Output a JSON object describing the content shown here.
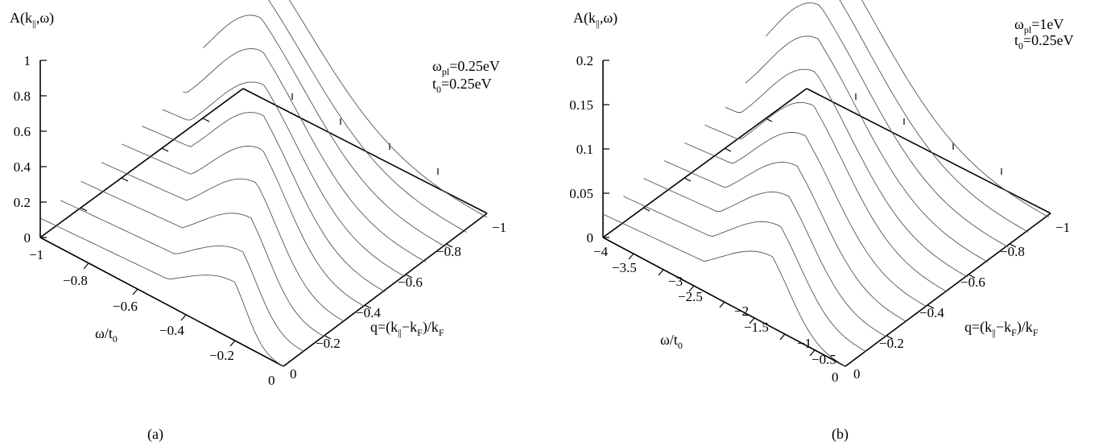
{
  "chart_data": [
    {
      "type": "line",
      "panel_label": "(a)",
      "zlabel": "A(k||,ω)",
      "xlabel": "ω/t0",
      "ylabel": "q=(k||−kF)/kF",
      "annotation": [
        "ωpl=0.25eV",
        "t0=0.25eV"
      ],
      "z_ticks": [
        "0",
        "0.2",
        "0.4",
        "0.6",
        "0.8",
        "1"
      ],
      "x_ticks": [
        "−1",
        "−0.8",
        "−0.6",
        "−0.4",
        "−0.2",
        "0"
      ],
      "y_ticks": [
        "0",
        "−0.2",
        "−0.4",
        "−0.6",
        "−0.8",
        "−1"
      ],
      "x_range": [
        -1,
        0
      ],
      "y_range": [
        0,
        -1
      ],
      "z_range": [
        0,
        1
      ],
      "series": [
        {
          "q": 0.0,
          "peak_omega": -0.2,
          "peak_value": 0.33
        },
        {
          "q": -0.1,
          "peak_omega": -0.25,
          "peak_value": 0.38
        },
        {
          "q": -0.2,
          "peak_omega": -0.3,
          "peak_value": 0.45
        },
        {
          "q": -0.3,
          "peak_omega": -0.36,
          "peak_value": 0.52
        },
        {
          "q": -0.4,
          "peak_omega": -0.42,
          "peak_value": 0.58
        },
        {
          "q": -0.5,
          "peak_omega": -0.5,
          "peak_value": 0.63
        },
        {
          "q": -0.6,
          "peak_omega": -0.58,
          "peak_value": 0.66
        },
        {
          "q": -0.7,
          "peak_omega": -0.67,
          "peak_value": 0.7
        },
        {
          "q": -0.8,
          "peak_omega": -0.76,
          "peak_value": 0.74
        },
        {
          "q": -0.9,
          "peak_omega": -0.86,
          "peak_value": 0.78
        },
        {
          "q": -1.0,
          "peak_omega": -0.95,
          "peak_value": 0.82
        }
      ]
    },
    {
      "type": "line",
      "panel_label": "(b)",
      "zlabel": "A(k||,ω)",
      "xlabel": "ω/t0",
      "ylabel": "q=(k||−kF)/kF",
      "annotation": [
        "ωpl=1eV",
        "t0=0.25eV"
      ],
      "z_ticks": [
        "0",
        "0.05",
        "0.1",
        "0.15",
        "0.2"
      ],
      "x_ticks": [
        "−4",
        "−3.5",
        "−3",
        "−2.5",
        "−2",
        "−1.5",
        "−1",
        "−0.5",
        "0"
      ],
      "y_ticks": [
        "0",
        "−0.2",
        "−0.4",
        "−0.6",
        "−0.8",
        "−1"
      ],
      "x_range": [
        -4,
        0
      ],
      "y_range": [
        0,
        -1
      ],
      "z_range": [
        0,
        0.2
      ],
      "series": [
        {
          "q": 0.0,
          "peak_omega": -1.2,
          "peak_value": 0.08
        },
        {
          "q": -0.1,
          "peak_omega": -1.4,
          "peak_value": 0.09
        },
        {
          "q": -0.2,
          "peak_omega": -1.6,
          "peak_value": 0.1
        },
        {
          "q": -0.3,
          "peak_omega": -1.8,
          "peak_value": 0.11
        },
        {
          "q": -0.4,
          "peak_omega": -2.0,
          "peak_value": 0.12
        },
        {
          "q": -0.5,
          "peak_omega": -2.2,
          "peak_value": 0.13
        },
        {
          "q": -0.6,
          "peak_omega": -2.5,
          "peak_value": 0.14
        },
        {
          "q": -0.7,
          "peak_omega": -2.8,
          "peak_value": 0.15
        },
        {
          "q": -0.8,
          "peak_omega": -3.1,
          "peak_value": 0.16
        },
        {
          "q": -0.9,
          "peak_omega": -3.4,
          "peak_value": 0.17
        },
        {
          "q": -1.0,
          "peak_omega": -3.7,
          "peak_value": 0.18
        }
      ]
    }
  ]
}
